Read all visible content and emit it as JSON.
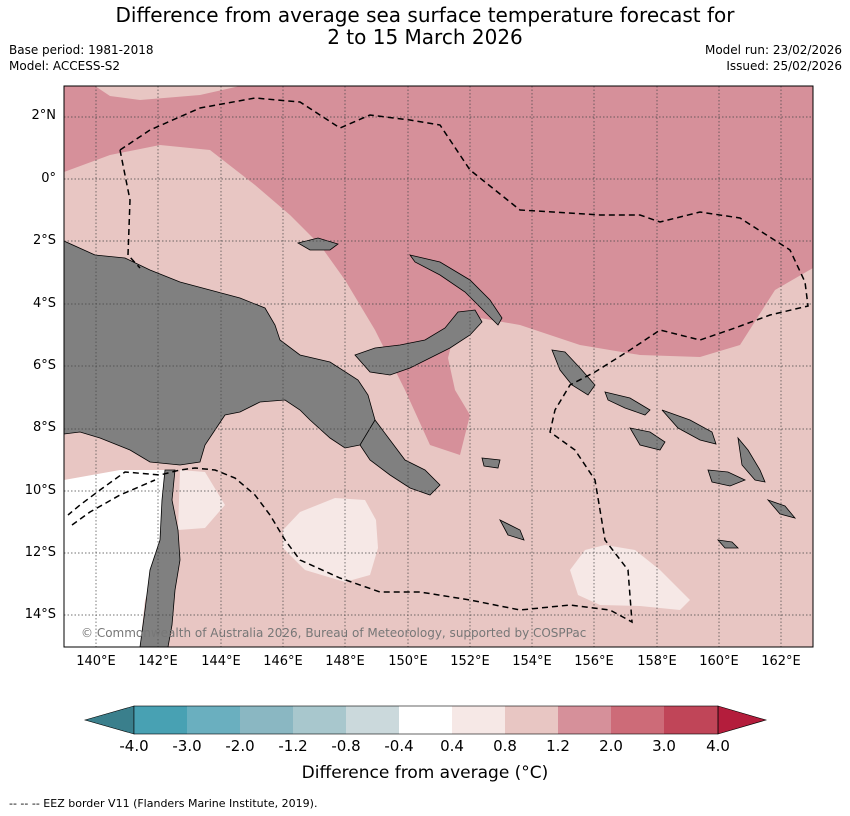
{
  "header": {
    "title_line1": "Difference from average sea surface temperature forecast for",
    "title_line2": "2 to 15 March 2026",
    "base_period": "Base period: 1981-2018",
    "model": "Model: ACCESS-S2",
    "model_run": "Model run: 23/02/2026",
    "issued": "Issued: 25/02/2026"
  },
  "map": {
    "lat_labels": [
      "2°N",
      "0°",
      "2°S",
      "4°S",
      "6°S",
      "8°S",
      "10°S",
      "12°S",
      "14°S"
    ],
    "lon_labels": [
      "140°E",
      "142°E",
      "144°E",
      "146°E",
      "148°E",
      "150°E",
      "152°E",
      "154°E",
      "156°E",
      "158°E",
      "160°E",
      "162°E"
    ],
    "copyright": "© Commonwealth of Australia 2026, Bureau of Meteorology, supported by COSPPac",
    "colors": {
      "land": "#808080",
      "ocean_base": "#e8c6c3",
      "warm_1_2": "#d6909a",
      "mild_0_4": "#f6e8e6"
    }
  },
  "colorbar": {
    "ticks": [
      "-4.0",
      "-3.0",
      "-2.0",
      "-1.2",
      "-0.8",
      "-0.4",
      "0.4",
      "0.8",
      "1.2",
      "2.0",
      "3.0",
      "4.0"
    ],
    "colors": [
      "#3a7f8c",
      "#48a1b3",
      "#6aafbf",
      "#8ab7c2",
      "#a8c7cd",
      "#cbd9dc",
      "#ffffff",
      "#f6e8e6",
      "#e8c6c3",
      "#d6909a",
      "#cd6b78",
      "#c04558",
      "#b41d3c"
    ],
    "title": "Difference from average (°C)"
  },
  "footer": {
    "legend": "--  --  -- EEZ border V11 (Flanders Marine Institute, 2019)."
  }
}
